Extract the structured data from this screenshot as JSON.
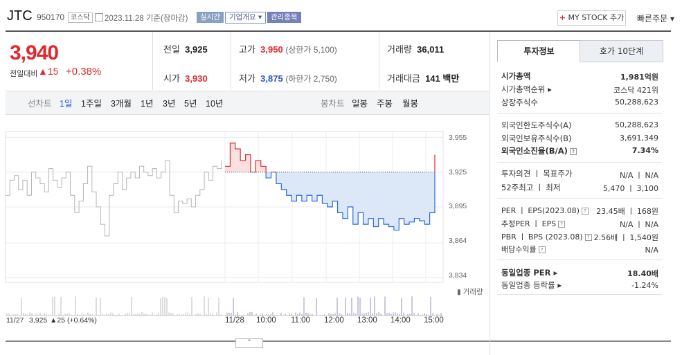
{
  "header": {
    "name": "JTC",
    "code": "950170",
    "market": "코스닥",
    "date": "2023.11.28  기준(장마감)",
    "tag_realtime": "실시간",
    "tag_overview": "기업개요 ▾",
    "tag_managed": "관리종목",
    "mystock_plus": "+",
    "mystock_label": " MY STOCK 추가",
    "quick_order": "빠른주문 ▾"
  },
  "price": {
    "current": "3,940",
    "change_label": "전일대비",
    "change": "▲15",
    "percent": "+0.38%"
  },
  "stats": {
    "prev_label": "전일",
    "prev": "3,925",
    "open_label": "시가",
    "open": "3,930",
    "high_label": "고가",
    "high": "3,950",
    "upper": "(상한가 5,100)",
    "low_label": "저가",
    "low": "3,875",
    "lower": "(하한가 2,750)",
    "volume_label": "거래량",
    "volume": "36,011",
    "amount_label": "거래대금",
    "amount": "141 백만"
  },
  "tabs": {
    "line_label": "선차트",
    "periods": [
      "1일",
      "1주일",
      "3개월",
      "1년",
      "3년",
      "5년",
      "10년"
    ],
    "candle_label": "봉차트",
    "candles": [
      "일봉",
      "주봉",
      "월봉"
    ]
  },
  "chart": {
    "yticks": [
      "3,955",
      "3,925",
      "3,895",
      "3,864",
      "3,834"
    ],
    "xticks": [
      "11/28",
      "10:00",
      "11:00",
      "12:00",
      "13:00",
      "14:00",
      "15:00"
    ],
    "volume_label": "거래량",
    "footer_date": "11/27",
    "footer_price": "3,925",
    "footer_change": "▲25 (+0.64%)",
    "collapse": "⌃"
  },
  "chart_data": {
    "type": "line",
    "series": [
      {
        "values": [
          3905,
          3918,
          3922,
          3910,
          3918,
          3905,
          3925,
          3920,
          3915,
          3908,
          3928,
          3918,
          3912,
          3920,
          3925,
          3905,
          3890,
          3900,
          3915,
          3930,
          3908,
          3895,
          3880,
          3870,
          3905,
          3915,
          3925,
          3910,
          3920,
          3925,
          3920,
          3930,
          3925,
          3922,
          3928,
          3920,
          3925,
          3935,
          3905,
          3890,
          3900,
          3898,
          3902,
          3895,
          3905,
          3910,
          3925,
          3918,
          3930,
          3928,
          3935
        ]
      },
      {
        "values": [
          3930,
          3950,
          3945,
          3935,
          3940,
          3925,
          3935,
          3930,
          3920,
          3925,
          3915,
          3910,
          3905,
          3900,
          3905,
          3900,
          3905,
          3900,
          3905,
          3898,
          3895,
          3900,
          3890,
          3885,
          3895,
          3880,
          3890,
          3880,
          3885,
          3878,
          3885,
          3880,
          3878,
          3875,
          3885,
          3880,
          3882,
          3885,
          3883,
          3880,
          3890,
          3940
        ]
      }
    ],
    "ylim": [
      3830,
      3960
    ],
    "reference": 3925
  },
  "panel": {
    "tab_invest": "투자정보",
    "tab_ask": "호가 10단계",
    "market_cap_label": "시가총액",
    "market_cap": "1,981억원",
    "rank_label": "시가총액순위 ▸",
    "rank": "코스닥 421위",
    "shares_label": "상장주식수",
    "shares": "50,288,623",
    "foreign_limit_label": "외국인한도주식수(A)",
    "foreign_limit": "50,288,623",
    "foreign_hold_label": "외국인보유주식수(B)",
    "foreign_hold": "3,691,349",
    "foreign_ratio_label": "외국인소진율(B/A)",
    "foreign_ratio": "7.34%",
    "opinion_label": "투자의견 ㅣ 목표주가",
    "opinion": "N/A ㅣ N/A",
    "week52_label": "52주최고 ㅣ 최저",
    "week52": "5,470 ㅣ 3,100",
    "per_label": "PER ㅣ EPS(2023.08)",
    "per": "23.45배 ㅣ 168원",
    "est_label": "추정PER ㅣ EPS",
    "est": "N/A ㅣ N/A",
    "pbr_label": "PBR ㅣ BPS (2023.08)",
    "pbr": "2.56배 ㅣ 1,540원",
    "div_label": "배당수익률",
    "div": "N/A",
    "sector_per_label": "동일업종 PER ▸",
    "sector_per": "18.40배",
    "sector_rate_label": "동일업종 등락률 ▸",
    "sector_rate": "-1.24%"
  }
}
